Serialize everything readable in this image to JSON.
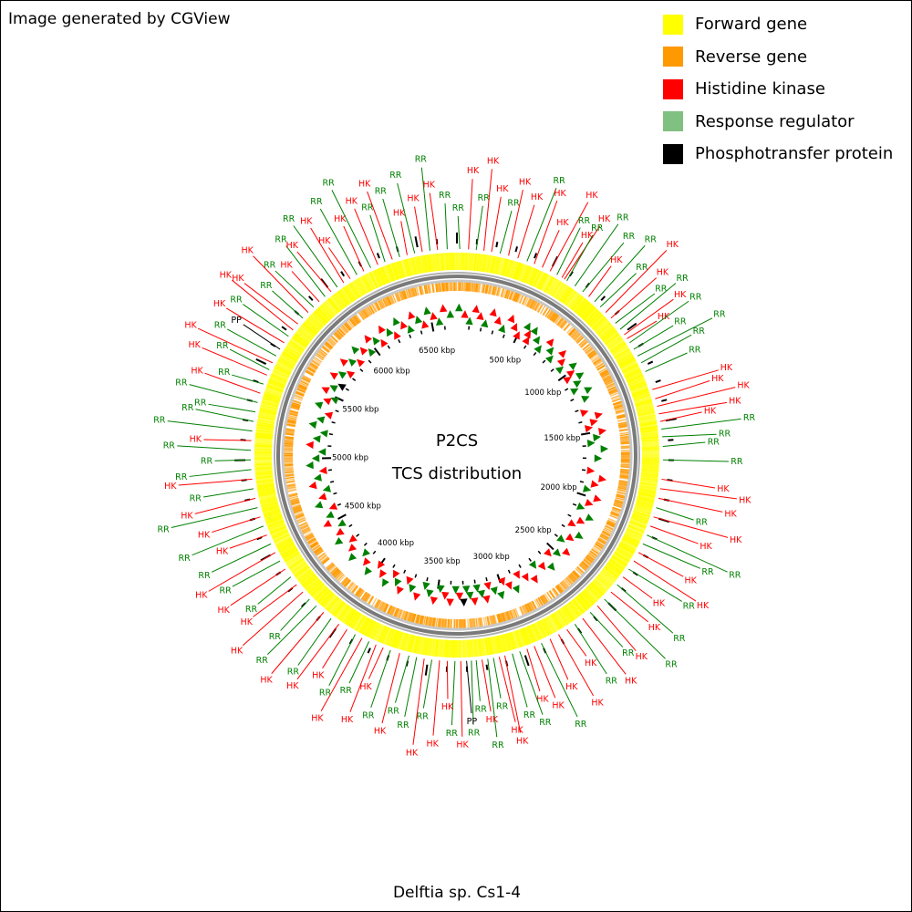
{
  "credit": "Image generated by CGView",
  "organism": "Delftia sp. Cs1-4",
  "center_title": "P2CS",
  "center_subtitle": "TCS distribution",
  "legend": [
    {
      "label": "Forward gene",
      "color": "#ffff00"
    },
    {
      "label": "Reverse gene",
      "color": "#ff9900"
    },
    {
      "label": "Histidine kinase",
      "color": "#ff0000"
    },
    {
      "label": "Response regulator",
      "color": "#80c080"
    },
    {
      "label": "Phosphotransfer protein",
      "color": "#000000"
    }
  ],
  "colors": {
    "HK": "#ff0000",
    "RR": "#008000",
    "PP": "#000000",
    "forward_gene": "#ffff00",
    "reverse_gene": "#ff9900",
    "backbone": "#808080"
  },
  "genome": {
    "length_kbp": 6700,
    "tick_labels": [
      {
        "kbp": 500,
        "label": "500 kbp"
      },
      {
        "kbp": 1000,
        "label": "1000 kbp"
      },
      {
        "kbp": 1500,
        "label": "1500 kbp"
      },
      {
        "kbp": 2000,
        "label": "2000 kbp"
      },
      {
        "kbp": 2500,
        "label": "2500 kbp"
      },
      {
        "kbp": 3000,
        "label": "3000 kbp"
      },
      {
        "kbp": 3500,
        "label": "3500 kbp"
      },
      {
        "kbp": 4000,
        "label": "4000 kbp"
      },
      {
        "kbp": 4500,
        "label": "4500 kbp"
      },
      {
        "kbp": 5000,
        "label": "5000 kbp"
      },
      {
        "kbp": 5500,
        "label": "5500 kbp"
      },
      {
        "kbp": 6000,
        "label": "6000 kbp"
      },
      {
        "kbp": 6500,
        "label": "6500 kbp"
      }
    ]
  },
  "features": [
    {
      "kbp": 15,
      "label": "RR"
    },
    {
      "kbp": 60,
      "label": "HK"
    },
    {
      "kbp": 100,
      "label": "RR"
    },
    {
      "kbp": 140,
      "label": "HK"
    },
    {
      "kbp": 180,
      "label": "HK"
    },
    {
      "kbp": 225,
      "label": "RR"
    },
    {
      "kbp": 270,
      "label": "HK"
    },
    {
      "kbp": 320,
      "label": "HK"
    },
    {
      "kbp": 370,
      "label": "RR"
    },
    {
      "kbp": 410,
      "label": "HK"
    },
    {
      "kbp": 455,
      "label": "HK"
    },
    {
      "kbp": 500,
      "label": "HK"
    },
    {
      "kbp": 540,
      "label": "RR"
    },
    {
      "kbp": 570,
      "label": "HK"
    },
    {
      "kbp": 585,
      "label": "HK"
    },
    {
      "kbp": 600,
      "label": "RR"
    },
    {
      "kbp": 650,
      "label": "RR"
    },
    {
      "kbp": 700,
      "label": "RR"
    },
    {
      "kbp": 740,
      "label": "HK"
    },
    {
      "kbp": 780,
      "label": "RR"
    },
    {
      "kbp": 820,
      "label": "RR"
    },
    {
      "kbp": 860,
      "label": "HK"
    },
    {
      "kbp": 900,
      "label": "HK"
    },
    {
      "kbp": 935,
      "label": "RR"
    },
    {
      "kbp": 975,
      "label": "RR"
    },
    {
      "kbp": 1010,
      "label": "HK"
    },
    {
      "kbp": 1035,
      "label": "HK"
    },
    {
      "kbp": 1060,
      "label": "RR"
    },
    {
      "kbp": 1100,
      "label": "RR"
    },
    {
      "kbp": 1140,
      "label": "RR"
    },
    {
      "kbp": 1180,
      "label": "RR"
    },
    {
      "kbp": 1230,
      "label": "RR"
    },
    {
      "kbp": 1330,
      "label": "HK"
    },
    {
      "kbp": 1380,
      "label": "HK"
    },
    {
      "kbp": 1420,
      "label": "HK"
    },
    {
      "kbp": 1460,
      "label": "HK"
    },
    {
      "kbp": 1500,
      "label": "HK"
    },
    {
      "kbp": 1540,
      "label": "RR"
    },
    {
      "kbp": 1580,
      "label": "RR"
    },
    {
      "kbp": 1630,
      "label": "RR"
    },
    {
      "kbp": 1700,
      "label": "RR"
    },
    {
      "kbp": 1800,
      "label": "HK"
    },
    {
      "kbp": 1850,
      "label": "HK"
    },
    {
      "kbp": 1900,
      "label": "HK"
    },
    {
      "kbp": 1950,
      "label": "RR"
    },
    {
      "kbp": 2000,
      "label": "HK"
    },
    {
      "kbp": 2050,
      "label": "HK"
    },
    {
      "kbp": 2100,
      "label": "RR"
    },
    {
      "kbp": 2150,
      "label": "RR"
    },
    {
      "kbp": 2200,
      "label": "HK"
    },
    {
      "kbp": 2250,
      "label": "HK"
    },
    {
      "kbp": 2300,
      "label": "RR"
    },
    {
      "kbp": 2350,
      "label": "HK"
    },
    {
      "kbp": 2400,
      "label": "RR"
    },
    {
      "kbp": 2450,
      "label": "HK"
    },
    {
      "kbp": 2500,
      "label": "RR"
    },
    {
      "kbp": 2550,
      "label": "HK"
    },
    {
      "kbp": 2600,
      "label": "RR"
    },
    {
      "kbp": 2650,
      "label": "HK"
    },
    {
      "kbp": 2700,
      "label": "RR"
    },
    {
      "kbp": 2750,
      "label": "HK"
    },
    {
      "kbp": 2800,
      "label": "HK"
    },
    {
      "kbp": 2850,
      "label": "HK"
    },
    {
      "kbp": 2900,
      "label": "RR"
    },
    {
      "kbp": 2940,
      "label": "HK"
    },
    {
      "kbp": 2980,
      "label": "HK"
    },
    {
      "kbp": 3020,
      "label": "RR"
    },
    {
      "kbp": 3060,
      "label": "RR"
    },
    {
      "kbp": 3100,
      "label": "HK"
    },
    {
      "kbp": 3130,
      "label": "HK"
    },
    {
      "kbp": 3160,
      "label": "RR"
    },
    {
      "kbp": 3190,
      "label": "RR"
    },
    {
      "kbp": 3220,
      "label": "HK"
    },
    {
      "kbp": 3250,
      "label": "RR"
    },
    {
      "kbp": 3275,
      "label": "RR"
    },
    {
      "kbp": 3300,
      "label": "PP"
    },
    {
      "kbp": 3330,
      "label": "HK"
    },
    {
      "kbp": 3360,
      "label": "RR"
    },
    {
      "kbp": 3400,
      "label": "HK"
    },
    {
      "kbp": 3440,
      "label": "HK"
    },
    {
      "kbp": 3480,
      "label": "RR"
    },
    {
      "kbp": 3520,
      "label": "HK"
    },
    {
      "kbp": 3560,
      "label": "RR"
    },
    {
      "kbp": 3600,
      "label": "RR"
    },
    {
      "kbp": 3650,
      "label": "HK"
    },
    {
      "kbp": 3700,
      "label": "RR"
    },
    {
      "kbp": 3740,
      "label": "HK"
    },
    {
      "kbp": 3780,
      "label": "HK"
    },
    {
      "kbp": 3820,
      "label": "RR"
    },
    {
      "kbp": 3860,
      "label": "HK"
    },
    {
      "kbp": 3900,
      "label": "RR"
    },
    {
      "kbp": 3950,
      "label": "HK"
    },
    {
      "kbp": 4000,
      "label": "HK"
    },
    {
      "kbp": 4050,
      "label": "RR"
    },
    {
      "kbp": 4100,
      "label": "HK"
    },
    {
      "kbp": 4150,
      "label": "RR"
    },
    {
      "kbp": 4200,
      "label": "RR"
    },
    {
      "kbp": 4250,
      "label": "HK"
    },
    {
      "kbp": 4300,
      "label": "HK"
    },
    {
      "kbp": 4350,
      "label": "RR"
    },
    {
      "kbp": 4400,
      "label": "HK"
    },
    {
      "kbp": 4450,
      "label": "RR"
    },
    {
      "kbp": 4500,
      "label": "HK"
    },
    {
      "kbp": 4550,
      "label": "RR"
    },
    {
      "kbp": 4600,
      "label": "HK"
    },
    {
      "kbp": 4650,
      "label": "RR"
    },
    {
      "kbp": 4700,
      "label": "HK"
    },
    {
      "kbp": 4750,
      "label": "RR"
    },
    {
      "kbp": 4800,
      "label": "HK"
    },
    {
      "kbp": 4850,
      "label": "RR"
    },
    {
      "kbp": 4900,
      "label": "HK"
    },
    {
      "kbp": 4950,
      "label": "RR"
    },
    {
      "kbp": 5000,
      "label": "RR"
    },
    {
      "kbp": 5050,
      "label": "RR"
    },
    {
      "kbp": 5100,
      "label": "HK"
    },
    {
      "kbp": 5150,
      "label": "RR"
    },
    {
      "kbp": 5200,
      "label": "RR"
    },
    {
      "kbp": 5250,
      "label": "RR"
    },
    {
      "kbp": 5300,
      "label": "RR"
    },
    {
      "kbp": 5350,
      "label": "HK"
    },
    {
      "kbp": 5400,
      "label": "RR"
    },
    {
      "kbp": 5450,
      "label": "HK"
    },
    {
      "kbp": 5480,
      "label": "RR"
    },
    {
      "kbp": 5520,
      "label": "HK"
    },
    {
      "kbp": 5560,
      "label": "RR"
    },
    {
      "kbp": 5600,
      "label": "PP"
    },
    {
      "kbp": 5640,
      "label": "HK"
    },
    {
      "kbp": 5680,
      "label": "RR"
    },
    {
      "kbp": 5720,
      "label": "HK"
    },
    {
      "kbp": 5760,
      "label": "HK"
    },
    {
      "kbp": 5800,
      "label": "RR"
    },
    {
      "kbp": 5840,
      "label": "HK"
    },
    {
      "kbp": 5880,
      "label": "RR"
    },
    {
      "kbp": 5920,
      "label": "HK"
    },
    {
      "kbp": 5960,
      "label": "RR"
    },
    {
      "kbp": 6000,
      "label": "HK"
    },
    {
      "kbp": 6040,
      "label": "RR"
    },
    {
      "kbp": 6080,
      "label": "HK"
    },
    {
      "kbp": 6120,
      "label": "HK"
    },
    {
      "kbp": 6160,
      "label": "RR"
    },
    {
      "kbp": 6200,
      "label": "HK"
    },
    {
      "kbp": 6240,
      "label": "RR"
    },
    {
      "kbp": 6280,
      "label": "HK"
    },
    {
      "kbp": 6320,
      "label": "RR"
    },
    {
      "kbp": 6360,
      "label": "HK"
    },
    {
      "kbp": 6400,
      "label": "RR"
    },
    {
      "kbp": 6440,
      "label": "HK"
    },
    {
      "kbp": 6480,
      "label": "RR"
    },
    {
      "kbp": 6520,
      "label": "HK"
    },
    {
      "kbp": 6560,
      "label": "RR"
    },
    {
      "kbp": 6600,
      "label": "HK"
    },
    {
      "kbp": 6650,
      "label": "RR"
    }
  ]
}
